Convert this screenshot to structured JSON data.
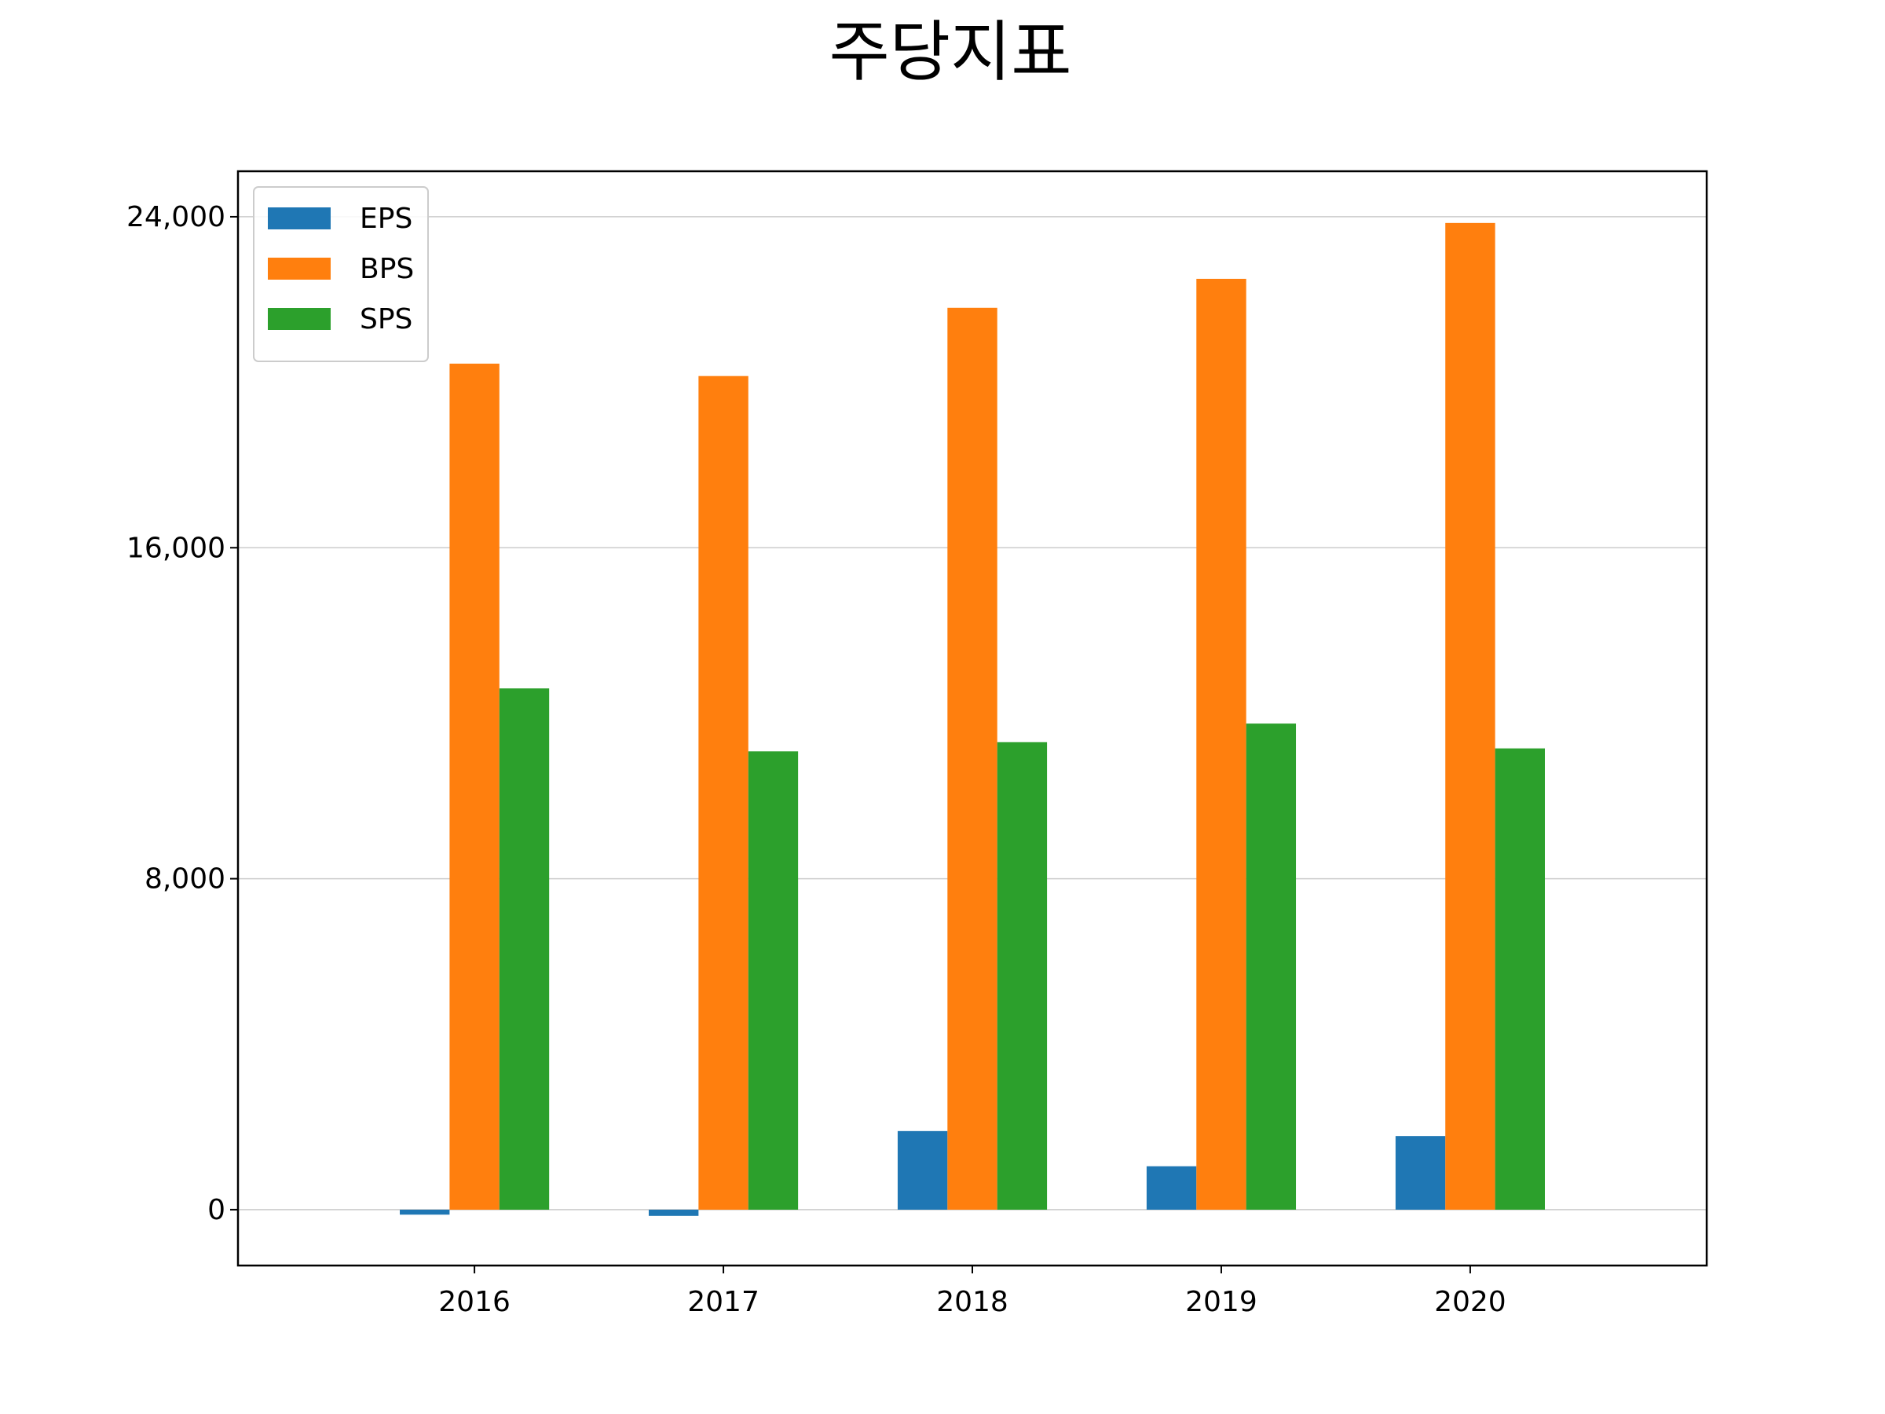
{
  "chart_data": {
    "type": "bar",
    "title": "주당지표",
    "xlabel": "",
    "ylabel": "",
    "categories": [
      "2016",
      "2017",
      "2018",
      "2019",
      "2020"
    ],
    "series": [
      {
        "name": "EPS",
        "color": "#1f77b4",
        "values": [
          -120,
          -150,
          1900,
          1050,
          1780
        ]
      },
      {
        "name": "BPS",
        "color": "#ff7f0e",
        "values": [
          20450,
          20150,
          21800,
          22500,
          23850
        ]
      },
      {
        "name": "SPS",
        "color": "#2ca02c",
        "values": [
          12600,
          11080,
          11300,
          11750,
          11150
        ]
      }
    ],
    "ylim": [
      -1350,
      25100
    ],
    "yticks": [
      0,
      8000,
      16000,
      24000
    ],
    "ytick_labels": [
      "0",
      "8,000",
      "16,000",
      "24,000"
    ],
    "grid": "y",
    "legend_position": "top-left"
  }
}
